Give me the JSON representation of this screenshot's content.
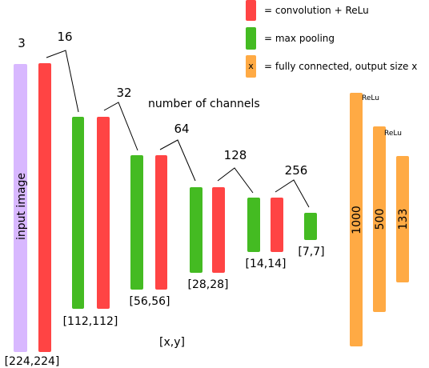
{
  "legend": {
    "conv": {
      "label": "= convolution  + ReLu",
      "color": "#ff4444"
    },
    "pool": {
      "label": "= max pooling",
      "color": "#44bb22"
    },
    "fc": {
      "label": "= fully connected, output size x",
      "color": "#ffaa44",
      "marker": "x"
    }
  },
  "input": {
    "label": "input image",
    "color": "#d8b8ff",
    "channels": "3",
    "size": "[224,224]"
  },
  "channels": [
    "16",
    "32",
    "64",
    "128",
    "256"
  ],
  "sizes": [
    "[112,112]",
    "[56,56]",
    "[28,28]",
    "[14,14]",
    "[7,7]"
  ],
  "annotations": {
    "number_of_channels": "number of channels",
    "xy": "[x,y]"
  },
  "fc_layers": [
    {
      "size": "1000",
      "activation": "ReLu"
    },
    {
      "size": "500",
      "activation": "ReLu"
    },
    {
      "size": "133",
      "activation": ""
    }
  ]
}
